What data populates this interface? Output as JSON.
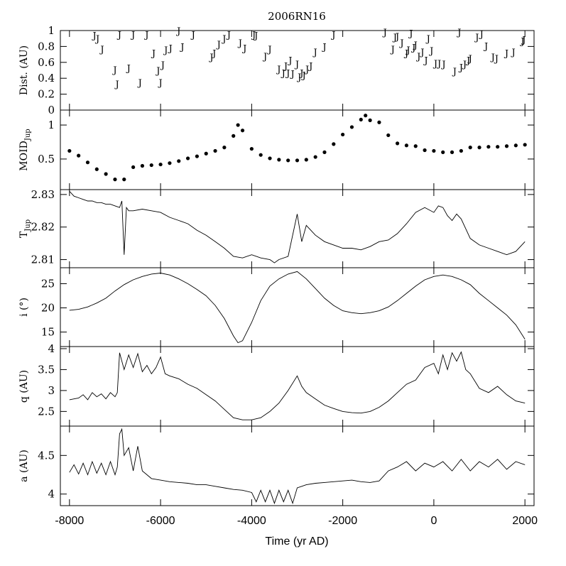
{
  "chart_data": {
    "title": "2006RN16",
    "xlabel": "Time (yr AD)",
    "xlim": [
      -8200,
      2200
    ],
    "x_ticks": [
      -8000,
      -6000,
      -4000,
      -2000,
      0,
      2000
    ],
    "x_tick_labels": [
      "-8000",
      "-6000",
      "-4000",
      "-2000",
      "0",
      "2000"
    ],
    "panels": [
      {
        "id": "dist",
        "type": "scatter",
        "ylabel": "Dist. (AU)",
        "ylim": [
          0,
          1
        ],
        "y_ticks": [
          0,
          0.2,
          0.4,
          0.6,
          0.8,
          1
        ],
        "y_tick_labels": [
          "0",
          "0.2",
          "0.4",
          "0.6",
          "0.8",
          "1"
        ],
        "marker_text": "J",
        "points": [
          [
            -7450,
            0.94
          ],
          [
            -7380,
            0.9
          ],
          [
            -7280,
            0.77
          ],
          [
            -7000,
            0.51
          ],
          [
            -6950,
            0.33
          ],
          [
            -6900,
            0.95
          ],
          [
            -6700,
            0.53
          ],
          [
            -6600,
            0.95
          ],
          [
            -6450,
            0.35
          ],
          [
            -6300,
            0.95
          ],
          [
            -6150,
            0.72
          ],
          [
            -6050,
            0.5
          ],
          [
            -6000,
            0.35
          ],
          [
            -5950,
            0.57
          ],
          [
            -5880,
            0.76
          ],
          [
            -5780,
            0.78
          ],
          [
            -5600,
            1.0
          ],
          [
            -5520,
            0.8
          ],
          [
            -5280,
            0.95
          ],
          [
            -4880,
            0.67
          ],
          [
            -4820,
            0.72
          ],
          [
            -4720,
            0.83
          ],
          [
            -4600,
            0.9
          ],
          [
            -4500,
            0.95
          ],
          [
            -4250,
            0.85
          ],
          [
            -4150,
            0.78
          ],
          [
            -3950,
            0.95
          ],
          [
            -3900,
            0.94
          ],
          [
            -3700,
            0.68
          ],
          [
            -3600,
            0.77
          ],
          [
            -3400,
            0.52
          ],
          [
            -3300,
            0.47
          ],
          [
            -3250,
            0.56
          ],
          [
            -3200,
            0.47
          ],
          [
            -3150,
            0.63
          ],
          [
            -3100,
            0.46
          ],
          [
            -3000,
            0.58
          ],
          [
            -2950,
            0.42
          ],
          [
            -2900,
            0.47
          ],
          [
            -2850,
            0.44
          ],
          [
            -2780,
            0.52
          ],
          [
            -2700,
            0.56
          ],
          [
            -2600,
            0.73
          ],
          [
            -2400,
            0.8
          ],
          [
            -2200,
            0.95
          ],
          [
            -1070,
            0.98
          ],
          [
            -900,
            0.77
          ],
          [
            -850,
            0.92
          ],
          [
            -800,
            0.93
          ],
          [
            -700,
            0.85
          ],
          [
            -600,
            0.72
          ],
          [
            -560,
            0.76
          ],
          [
            -500,
            0.97
          ],
          [
            -440,
            0.79
          ],
          [
            -400,
            0.82
          ],
          [
            -330,
            0.68
          ],
          [
            -250,
            0.73
          ],
          [
            -170,
            0.63
          ],
          [
            -120,
            0.9
          ],
          [
            -50,
            0.75
          ],
          [
            40,
            0.59
          ],
          [
            120,
            0.59
          ],
          [
            220,
            0.58
          ],
          [
            460,
            0.49
          ],
          [
            560,
            0.98
          ],
          [
            600,
            0.54
          ],
          [
            680,
            0.58
          ],
          [
            760,
            0.63
          ],
          [
            800,
            0.65
          ],
          [
            950,
            0.92
          ],
          [
            1050,
            0.96
          ],
          [
            1150,
            0.81
          ],
          [
            1300,
            0.67
          ],
          [
            1380,
            0.65
          ],
          [
            1600,
            0.72
          ],
          [
            1750,
            0.73
          ],
          [
            1950,
            0.87
          ],
          [
            1980,
            0.89
          ]
        ]
      },
      {
        "id": "moid",
        "type": "scatter",
        "ylabel": "MOID",
        "ylabel_sub": "Jup",
        "ylim": [
          0.05,
          1.22
        ],
        "y_ticks": [
          0.5,
          1
        ],
        "y_tick_labels": [
          "0.5",
          "1"
        ],
        "x": [
          -8000,
          -7800,
          -7600,
          -7400,
          -7200,
          -7000,
          -6800,
          -6600,
          -6400,
          -6200,
          -6000,
          -5800,
          -5600,
          -5400,
          -5200,
          -5000,
          -4800,
          -4600,
          -4400,
          -4300,
          -4200,
          -4000,
          -3800,
          -3600,
          -3400,
          -3200,
          -3000,
          -2800,
          -2600,
          -2400,
          -2200,
          -2000,
          -1800,
          -1600,
          -1500,
          -1400,
          -1200,
          -1000,
          -800,
          -600,
          -400,
          -200,
          0,
          200,
          400,
          600,
          800,
          1000,
          1200,
          1400,
          1600,
          1800,
          2000
        ],
        "y": [
          0.62,
          0.55,
          0.45,
          0.35,
          0.28,
          0.2,
          0.2,
          0.38,
          0.4,
          0.41,
          0.42,
          0.44,
          0.47,
          0.51,
          0.54,
          0.58,
          0.62,
          0.67,
          0.84,
          1.0,
          0.92,
          0.65,
          0.56,
          0.51,
          0.49,
          0.48,
          0.48,
          0.49,
          0.53,
          0.6,
          0.72,
          0.86,
          0.97,
          1.08,
          1.14,
          1.07,
          1.04,
          0.85,
          0.73,
          0.7,
          0.69,
          0.63,
          0.62,
          0.6,
          0.6,
          0.62,
          0.67,
          0.67,
          0.68,
          0.68,
          0.69,
          0.7,
          0.71
        ]
      },
      {
        "id": "tjup",
        "type": "line",
        "ylabel": "T",
        "ylabel_sub": "Jup",
        "ylim": [
          2.8075,
          2.8315
        ],
        "y_ticks": [
          2.81,
          2.82,
          2.83
        ],
        "y_tick_labels": [
          "2.81",
          "2.82",
          "2.83"
        ],
        "x": [
          -8000,
          -7900,
          -7800,
          -7700,
          -7600,
          -7500,
          -7400,
          -7300,
          -7200,
          -7100,
          -7000,
          -6900,
          -6850,
          -6800,
          -6750,
          -6700,
          -6600,
          -6400,
          -6200,
          -6000,
          -5800,
          -5600,
          -5400,
          -5200,
          -5000,
          -4800,
          -4600,
          -4400,
          -4200,
          -4000,
          -3800,
          -3600,
          -3500,
          -3400,
          -3200,
          -3000,
          -2900,
          -2800,
          -2600,
          -2400,
          -2200,
          -2000,
          -1800,
          -1600,
          -1400,
          -1200,
          -1000,
          -800,
          -600,
          -400,
          -200,
          0,
          100,
          200,
          300,
          400,
          500,
          600,
          800,
          1000,
          1200,
          1400,
          1600,
          1800,
          2000
        ],
        "y": [
          2.831,
          2.8295,
          2.829,
          2.8285,
          2.828,
          2.828,
          2.8275,
          2.8275,
          2.827,
          2.827,
          2.8265,
          2.826,
          2.828,
          2.8115,
          2.826,
          2.825,
          2.825,
          2.8255,
          2.825,
          2.8245,
          2.823,
          2.822,
          2.821,
          2.819,
          2.8175,
          2.8155,
          2.8135,
          2.811,
          2.8105,
          2.8115,
          2.8105,
          2.81,
          2.809,
          2.81,
          2.811,
          2.824,
          2.8155,
          2.8205,
          2.8175,
          2.8155,
          2.8145,
          2.8135,
          2.8135,
          2.813,
          2.814,
          2.8155,
          2.816,
          2.818,
          2.821,
          2.8245,
          2.826,
          2.8245,
          2.8265,
          2.826,
          2.8235,
          2.822,
          2.824,
          2.8225,
          2.8165,
          2.8145,
          2.8135,
          2.8125,
          2.8115,
          2.8125,
          2.8155
        ]
      },
      {
        "id": "incl",
        "type": "line",
        "ylabel": "i (°)",
        "ylim": [
          12,
          28.3
        ],
        "y_ticks": [
          15,
          20,
          25
        ],
        "y_tick_labels": [
          "15",
          "20",
          "25"
        ],
        "x": [
          -8000,
          -7800,
          -7600,
          -7400,
          -7200,
          -7000,
          -6800,
          -6600,
          -6400,
          -6200,
          -6000,
          -5800,
          -5600,
          -5400,
          -5200,
          -5000,
          -4800,
          -4600,
          -4400,
          -4300,
          -4200,
          -4000,
          -3800,
          -3600,
          -3400,
          -3200,
          -3000,
          -2800,
          -2600,
          -2400,
          -2200,
          -2000,
          -1800,
          -1600,
          -1400,
          -1200,
          -1000,
          -800,
          -600,
          -400,
          -200,
          0,
          200,
          400,
          600,
          800,
          1000,
          1200,
          1400,
          1600,
          1800,
          1900,
          2000
        ],
        "y": [
          19.5,
          19.7,
          20.2,
          21.0,
          22.0,
          23.5,
          24.8,
          25.8,
          26.5,
          27.0,
          27.2,
          26.8,
          26.0,
          25.0,
          23.8,
          22.5,
          20.5,
          17.8,
          14.2,
          12.8,
          13.2,
          17.0,
          21.5,
          24.5,
          26.0,
          27.0,
          27.5,
          26.0,
          24.0,
          22.0,
          20.5,
          19.4,
          19.0,
          18.8,
          19.0,
          19.4,
          20.2,
          21.5,
          23.0,
          24.5,
          25.8,
          26.5,
          26.8,
          26.5,
          25.8,
          24.8,
          23.0,
          21.5,
          20.0,
          18.5,
          16.5,
          15.0,
          13.5
        ]
      },
      {
        "id": "q",
        "type": "line",
        "ylabel": "q (AU)",
        "ylim": [
          2.15,
          4.05
        ],
        "y_ticks": [
          2.5,
          3,
          3.5,
          4
        ],
        "y_tick_labels": [
          "2.5",
          "3",
          "3.5",
          "4"
        ],
        "x": [
          -8000,
          -7900,
          -7800,
          -7700,
          -7600,
          -7500,
          -7400,
          -7300,
          -7200,
          -7100,
          -7000,
          -6950,
          -6900,
          -6800,
          -6700,
          -6600,
          -6500,
          -6400,
          -6300,
          -6200,
          -6100,
          -6000,
          -5900,
          -5800,
          -5600,
          -5400,
          -5200,
          -5000,
          -4800,
          -4600,
          -4400,
          -4200,
          -4000,
          -3800,
          -3600,
          -3400,
          -3200,
          -3000,
          -2900,
          -2800,
          -2600,
          -2400,
          -2200,
          -2000,
          -1800,
          -1600,
          -1400,
          -1200,
          -1000,
          -800,
          -600,
          -400,
          -200,
          0,
          100,
          200,
          300,
          400,
          500,
          600,
          700,
          800,
          1000,
          1200,
          1400,
          1600,
          1800,
          2000
        ],
        "y": [
          2.78,
          2.8,
          2.82,
          2.9,
          2.78,
          2.95,
          2.85,
          2.92,
          2.8,
          2.95,
          2.85,
          2.95,
          3.9,
          3.5,
          3.85,
          3.55,
          3.88,
          3.45,
          3.6,
          3.4,
          3.55,
          3.8,
          3.4,
          3.35,
          3.28,
          3.15,
          3.05,
          2.9,
          2.75,
          2.55,
          2.35,
          2.3,
          2.3,
          2.35,
          2.5,
          2.7,
          3.0,
          3.35,
          3.1,
          2.95,
          2.8,
          2.65,
          2.57,
          2.5,
          2.47,
          2.46,
          2.5,
          2.6,
          2.75,
          2.95,
          3.15,
          3.25,
          3.55,
          3.65,
          3.4,
          3.85,
          3.5,
          3.9,
          3.7,
          3.92,
          3.5,
          3.4,
          3.05,
          2.95,
          3.1,
          2.9,
          2.75,
          2.7
        ]
      },
      {
        "id": "a",
        "type": "line",
        "ylabel": "a (AU)",
        "ylim": [
          3.85,
          4.88
        ],
        "y_ticks": [
          4,
          4.5
        ],
        "y_tick_labels": [
          "4",
          "4.5"
        ],
        "x": [
          -8000,
          -7900,
          -7800,
          -7700,
          -7600,
          -7500,
          -7400,
          -7300,
          -7200,
          -7100,
          -7000,
          -6950,
          -6900,
          -6850,
          -6800,
          -6700,
          -6600,
          -6500,
          -6400,
          -6300,
          -6200,
          -6000,
          -5800,
          -5600,
          -5400,
          -5200,
          -5000,
          -4800,
          -4600,
          -4400,
          -4200,
          -4000,
          -3900,
          -3800,
          -3700,
          -3600,
          -3500,
          -3400,
          -3300,
          -3200,
          -3100,
          -3000,
          -2900,
          -2800,
          -2600,
          -2400,
          -2200,
          -2000,
          -1800,
          -1600,
          -1400,
          -1200,
          -1000,
          -800,
          -600,
          -400,
          -200,
          0,
          200,
          400,
          600,
          800,
          1000,
          1200,
          1400,
          1600,
          1800,
          2000
        ],
        "y": [
          4.28,
          4.38,
          4.26,
          4.4,
          4.25,
          4.42,
          4.27,
          4.4,
          4.25,
          4.42,
          4.25,
          4.35,
          4.78,
          4.84,
          4.5,
          4.6,
          4.3,
          4.62,
          4.3,
          4.25,
          4.2,
          4.18,
          4.16,
          4.15,
          4.14,
          4.12,
          4.12,
          4.1,
          4.08,
          4.06,
          4.05,
          4.02,
          3.9,
          4.05,
          3.9,
          4.05,
          3.88,
          4.05,
          3.9,
          4.05,
          3.88,
          4.08,
          4.1,
          4.12,
          4.14,
          4.15,
          4.16,
          4.17,
          4.18,
          4.16,
          4.15,
          4.17,
          4.3,
          4.35,
          4.42,
          4.3,
          4.4,
          4.35,
          4.42,
          4.3,
          4.45,
          4.3,
          4.42,
          4.35,
          4.45,
          4.32,
          4.42,
          4.38
        ]
      }
    ]
  }
}
